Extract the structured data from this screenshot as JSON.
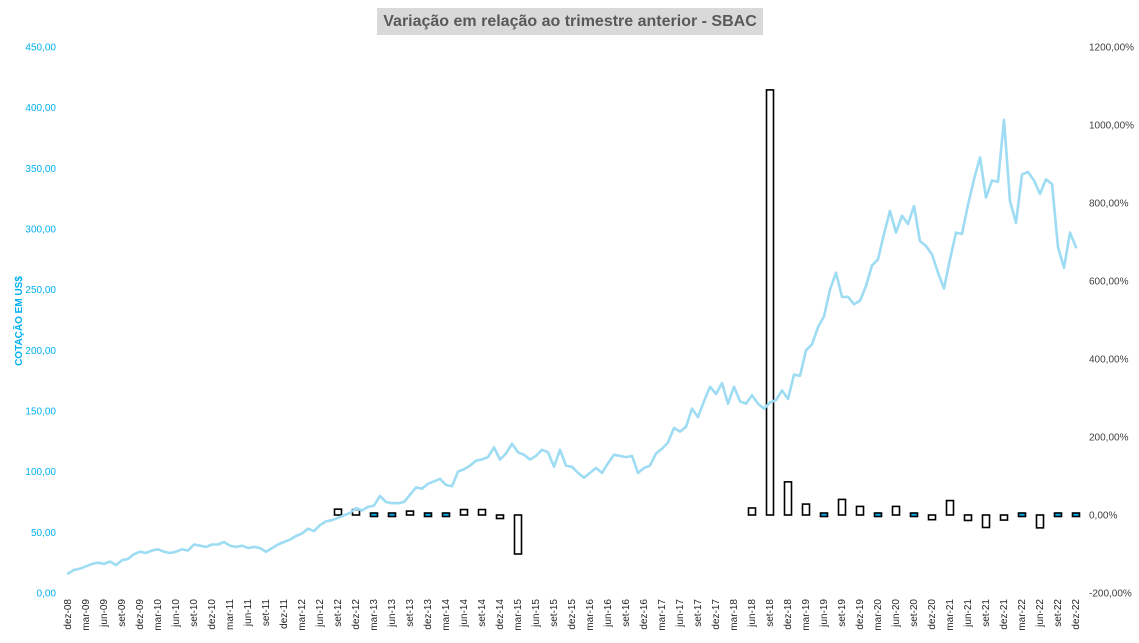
{
  "colors": {
    "price_line": "#9ddcf3",
    "bar_fill": "#ffffff",
    "bar_stroke": "#000000",
    "bar_small_fill": "#00b0f0",
    "left_axis_text": "#00b0f0",
    "right_axis_text": "#404040",
    "title_bg": "#d9d9d9"
  },
  "chart_data": {
    "type": "line+bar",
    "title": "Variação em relação ao trimestre anterior - SBAC",
    "ylabel": "COTAÇÃO EM US$",
    "y_left": {
      "ylim": [
        0,
        450
      ],
      "ticks": [
        "0,00",
        "50,00",
        "100,00",
        "150,00",
        "200,00",
        "250,00",
        "300,00",
        "350,00",
        "400,00",
        "450,00"
      ]
    },
    "y_right": {
      "ylim": [
        -200,
        1200
      ],
      "ticks": [
        "-200,00%",
        "0,00%",
        "200,00%",
        "400,00%",
        "600,00%",
        "800,00%",
        "1000,00%",
        "1200,00%"
      ]
    },
    "x_tick_labels": [
      "dez-08",
      "mar-09",
      "jun-09",
      "set-09",
      "dez-09",
      "mar-10",
      "jun-10",
      "set-10",
      "dez-10",
      "mar-11",
      "jun-11",
      "set-11",
      "dez-11",
      "mar-12",
      "jun-12",
      "set-12",
      "dez-12",
      "mar-13",
      "jun-13",
      "set-13",
      "dez-13",
      "mar-14",
      "jun-14",
      "set-14",
      "dez-14",
      "mar-15",
      "jun-15",
      "set-15",
      "dez-15",
      "mar-16",
      "jun-16",
      "set-16",
      "dez-16",
      "mar-17",
      "jun-17",
      "set-17",
      "dez-17",
      "mar-18",
      "jun-18",
      "set-18",
      "dez-18",
      "mar-19",
      "jun-19",
      "set-19",
      "dez-19",
      "mar-20",
      "jun-20",
      "set-20",
      "dez-20",
      "mar-21",
      "jun-21",
      "set-21",
      "dez-21",
      "mar-22",
      "jun-22",
      "set-22",
      "dez-22"
    ],
    "grid": false,
    "legend": "none",
    "series": [
      {
        "type": "line",
        "axis": "left",
        "monthly_values_from_dez-08": [
          16,
          19,
          20,
          22,
          24,
          25,
          24,
          26,
          23,
          27,
          28,
          32,
          34,
          33,
          35,
          36,
          34,
          33,
          34,
          36,
          35,
          40,
          39,
          38,
          40,
          40,
          42,
          39,
          38,
          39,
          37,
          38,
          37,
          34,
          37,
          40,
          42,
          44,
          47,
          49,
          53,
          51,
          56,
          59,
          60,
          62,
          64,
          66,
          70,
          68,
          71,
          72,
          80,
          75,
          74,
          74,
          75,
          81,
          87,
          86,
          90,
          92,
          94,
          89,
          88,
          100,
          102,
          105,
          109,
          110,
          112,
          120,
          110,
          115,
          123,
          116,
          114,
          110,
          113,
          118,
          116,
          104,
          118,
          105,
          104,
          99,
          95,
          99,
          103,
          99,
          107,
          114,
          113,
          112,
          113,
          99,
          103,
          105,
          115,
          119,
          124,
          136,
          133,
          137,
          152,
          145,
          158,
          170,
          164,
          173,
          156,
          170,
          158,
          156,
          163,
          156,
          152,
          157,
          159,
          167,
          160,
          180,
          179,
          200,
          205,
          219,
          228,
          250,
          264,
          244,
          244,
          238,
          241,
          253,
          270,
          275,
          296,
          315,
          297,
          311,
          304,
          319,
          290,
          286,
          279,
          264,
          251,
          275,
          297,
          296,
          320,
          341,
          359,
          326,
          340,
          339,
          390,
          323,
          305,
          345,
          347,
          340,
          329,
          341,
          337,
          285,
          268,
          297,
          285
        ]
      },
      {
        "type": "bar",
        "axis": "right",
        "name": "",
        "categories": [
          "set-12",
          "dez-12",
          "mar-13",
          "jun-13",
          "set-13",
          "dez-13",
          "mar-14",
          "jun-14",
          "set-14",
          "dez-14",
          "mar-15",
          "jun-18",
          "set-18",
          "dez-18",
          "mar-19",
          "jun-19",
          "set-19",
          "dez-19",
          "mar-20",
          "jun-20",
          "set-20",
          "dez-20",
          "mar-21",
          "jun-21",
          "set-21",
          "dez-21",
          "mar-22",
          "jun-22",
          "set-22",
          "dez-22"
        ],
        "values": [
          15,
          14,
          -3,
          8,
          10,
          -7,
          -5,
          14,
          14,
          -9,
          -100,
          18,
          1090,
          85,
          28,
          -8,
          40,
          22,
          8,
          22,
          -8,
          -12,
          37,
          -14,
          -32,
          -13,
          7,
          -33,
          -7,
          5
        ]
      }
    ]
  }
}
